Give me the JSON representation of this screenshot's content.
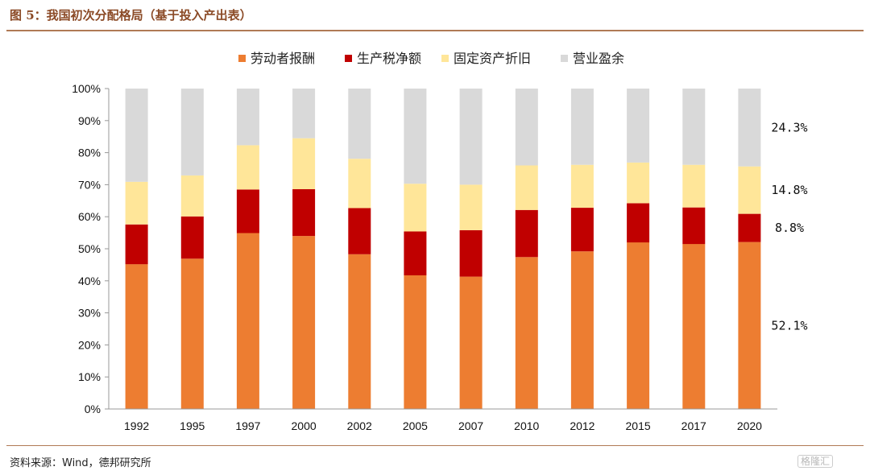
{
  "title": "图 5：我国初次分配格局（基于投入产出表）",
  "source": "资料来源：Wind，德邦研究所",
  "watermark": "格隆汇",
  "colors": {
    "labor": "#ed7d31",
    "tax": "#c00000",
    "depreciation": "#ffe699",
    "surplus": "#d9d9d9",
    "title": "#8b4a26",
    "rule": "#b07a55"
  },
  "chart_data": {
    "type": "bar",
    "stacked": true,
    "percent": true,
    "categories": [
      "1992",
      "1995",
      "1997",
      "2000",
      "2002",
      "2005",
      "2007",
      "2010",
      "2012",
      "2015",
      "2017",
      "2020"
    ],
    "series": [
      {
        "name": "劳动者报酬",
        "color": "#ed7d31",
        "values": [
          45.2,
          46.9,
          54.9,
          54.0,
          48.3,
          41.7,
          41.3,
          47.4,
          49.2,
          52.0,
          51.5,
          52.1
        ]
      },
      {
        "name": "生产税净额",
        "color": "#c00000",
        "values": [
          12.4,
          13.2,
          13.6,
          14.6,
          14.4,
          13.7,
          14.5,
          14.7,
          13.6,
          12.2,
          11.4,
          8.8
        ]
      },
      {
        "name": "固定资产折旧",
        "color": "#ffe699",
        "values": [
          13.3,
          12.8,
          13.8,
          15.9,
          15.4,
          14.9,
          14.2,
          13.9,
          13.4,
          12.7,
          13.3,
          14.8
        ]
      },
      {
        "name": "营业盈余",
        "color": "#d9d9d9",
        "values": [
          29.1,
          27.1,
          17.7,
          15.5,
          21.9,
          29.7,
          30.0,
          24.0,
          23.8,
          23.1,
          23.8,
          24.3
        ]
      }
    ],
    "yticks": [
      "0%",
      "10%",
      "20%",
      "30%",
      "40%",
      "50%",
      "60%",
      "70%",
      "80%",
      "90%",
      "100%"
    ],
    "ylim": [
      0,
      100
    ],
    "legend_position": "top",
    "grid": false,
    "annotations": [
      "52.1%",
      "8.8%",
      "14.8%",
      "24.3%"
    ]
  }
}
